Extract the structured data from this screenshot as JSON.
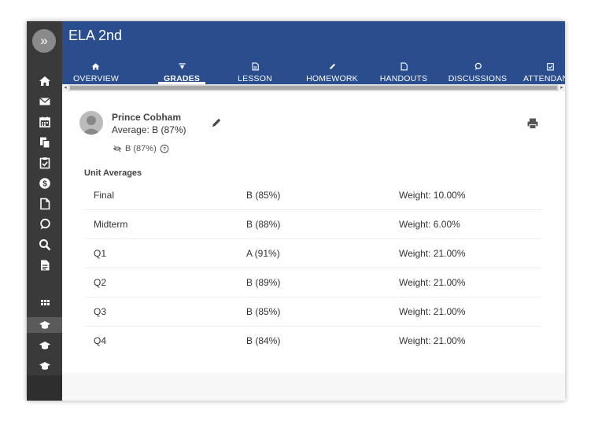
{
  "course": {
    "title": "ELA 2nd"
  },
  "sidebar": {
    "toggle": "»",
    "icons": [
      "home-icon",
      "mail-icon",
      "calendar-icon",
      "copy-icon",
      "clipboard-check-icon",
      "dollar-icon",
      "document-icon",
      "chat-icon",
      "search-icon",
      "file-text-icon",
      "grid-icon",
      "graduation-cap-icon",
      "graduation-cap-icon",
      "graduation-cap-icon"
    ]
  },
  "tabs": [
    {
      "label": "OVERVIEW",
      "icon": "home-icon"
    },
    {
      "label": "GRADES",
      "icon": "grades-icon",
      "active": true
    },
    {
      "label": "LESSON PLANS",
      "icon": "lesson-icon"
    },
    {
      "label": "HOMEWORK",
      "icon": "pencil-icon"
    },
    {
      "label": "HANDOUTS",
      "icon": "handout-icon"
    },
    {
      "label": "DISCUSSIONS",
      "icon": "chat-icon"
    },
    {
      "label": "ATTENDANCE",
      "icon": "attendance-icon"
    }
  ],
  "student": {
    "name": "Prince Cobham",
    "average": "Average: B (87%)",
    "hidden_average": "B (87%)"
  },
  "unit_averages": {
    "title": "Unit Averages",
    "rows": [
      {
        "name": "Final",
        "grade": "B (85%)",
        "weight": "Weight: 10.00%"
      },
      {
        "name": "Midterm",
        "grade": "B (88%)",
        "weight": "Weight: 6.00%"
      },
      {
        "name": "Q1",
        "grade": "A (91%)",
        "weight": "Weight: 21.00%"
      },
      {
        "name": "Q2",
        "grade": "B (89%)",
        "weight": "Weight: 21.00%"
      },
      {
        "name": "Q3",
        "grade": "B (85%)",
        "weight": "Weight: 21.00%"
      },
      {
        "name": "Q4",
        "grade": "B (84%)",
        "weight": "Weight: 21.00%"
      }
    ]
  },
  "colors": {
    "header": "#2a4d8d",
    "sidebar": "#3a3a3a"
  }
}
